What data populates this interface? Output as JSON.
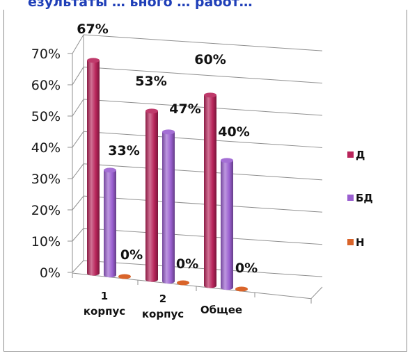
{
  "title_fragment": "езультаты … ьного … работ…",
  "chart_data": {
    "type": "bar",
    "categories": [
      "1 корпус",
      "2 корпус",
      "Общее"
    ],
    "category_lines": [
      [
        "1",
        "корпус"
      ],
      [
        "2",
        "корпус"
      ],
      [
        "Общее"
      ]
    ],
    "series": [
      {
        "name": "Д",
        "values": [
          0.67,
          0.53,
          0.6
        ],
        "labels": [
          "67%",
          "53%",
          "60%"
        ]
      },
      {
        "name": "БД",
        "values": [
          0.33,
          0.47,
          0.4
        ],
        "labels": [
          "33%",
          "47%",
          "40%"
        ]
      },
      {
        "name": "Н",
        "values": [
          0.0,
          0.0,
          0.0
        ],
        "labels": [
          "0%",
          "0%",
          "0%"
        ]
      }
    ],
    "ylim": [
      0,
      0.7
    ],
    "yticks": [
      "0%",
      "10%",
      "20%",
      "30%",
      "40%",
      "50%",
      "60%",
      "70%"
    ],
    "grid": true,
    "legend_position": "right",
    "style": "3d-cylinder",
    "colors": {
      "Д": "#b8245a",
      "БД": "#9a5fd0",
      "Н": "#d9642a",
      "grid": "#8f8f8f"
    }
  }
}
